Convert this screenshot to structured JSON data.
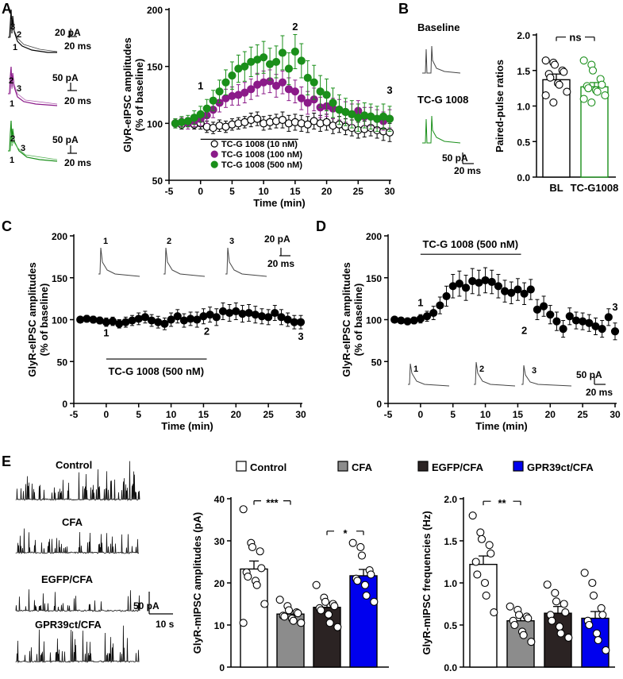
{
  "panels": [
    "A",
    "B",
    "C",
    "D",
    "E"
  ],
  "colors": {
    "black": "#000000",
    "purple": "#8b1a89",
    "green": "#1a8f1a",
    "gray": "#8c8c8c",
    "dark": "#2b2323",
    "blue": "#0000ee"
  },
  "scalebars": {
    "a1": {
      "y": "20 pA",
      "x": "20 ms"
    },
    "a2": {
      "y": "50 pA",
      "x": "20 ms"
    },
    "a3": {
      "y": "50 pA",
      "x": "20 ms"
    },
    "b": {
      "y": "50 pA",
      "x": "20 ms"
    },
    "c": {
      "y": "20 pA",
      "x": "20 ms"
    },
    "d": {
      "y": "50 pA",
      "x": "20 ms"
    },
    "e": {
      "y": "50 pA",
      "x": "10 s"
    }
  },
  "trace_labels": {
    "one": "1",
    "two": "2",
    "three": "3"
  },
  "b_labels": {
    "baseline": "Baseline",
    "drug": "TC-G 1008"
  },
  "e_traces": {
    "control": "Control",
    "cfa": "CFA",
    "egfp": "EGFP/CFA",
    "gpr": "GPR39ct/CFA"
  },
  "chart_data": [
    {
      "id": "A",
      "type": "scatter",
      "title": "",
      "xlabel": "Time (min)",
      "ylabel": "GlyR-eIPSC amplitudes (% of baseline)",
      "xlim": [
        -5,
        30
      ],
      "ylim": [
        50,
        200
      ],
      "xticks": [
        -5,
        0,
        5,
        10,
        15,
        20,
        25,
        30
      ],
      "yticks": [
        50,
        100,
        150,
        200
      ],
      "markers": [
        "1",
        "2",
        "3"
      ],
      "legend": [
        "TC-G 1008 (10 nM)",
        "TC-G 1008 (100 nM)",
        "TC-G 1008 (500 nM)"
      ],
      "series": [
        {
          "name": "TC-G 1008 (10 nM)",
          "color": "#000000",
          "filled": false,
          "x": [
            -4,
            -3,
            -2,
            -1,
            0,
            1,
            2,
            3,
            4,
            5,
            6,
            7,
            8,
            9,
            10,
            11,
            12,
            13,
            14,
            15,
            16,
            17,
            18,
            19,
            20,
            21,
            22,
            23,
            24,
            25,
            26,
            27,
            28,
            29,
            30
          ],
          "values": [
            100,
            99,
            101,
            99,
            100,
            97,
            96,
            98,
            97,
            99,
            100,
            101,
            103,
            104,
            100,
            101,
            102,
            103,
            100,
            101,
            100,
            99,
            102,
            100,
            101,
            98,
            99,
            97,
            96,
            94,
            95,
            96,
            94,
            93,
            92
          ],
          "err": [
            4,
            4,
            4,
            4,
            5,
            5,
            5,
            5,
            5,
            5,
            5,
            5,
            6,
            6,
            6,
            6,
            6,
            7,
            7,
            7,
            7,
            7,
            7,
            7,
            7,
            7,
            7,
            7,
            7,
            7,
            7,
            7,
            7,
            8,
            8
          ]
        },
        {
          "name": "TC-G 1008 (100 nM)",
          "color": "#8b1a89",
          "filled": true,
          "x": [
            -4,
            -3,
            -2,
            -1,
            0,
            1,
            2,
            3,
            4,
            5,
            6,
            7,
            8,
            9,
            10,
            11,
            12,
            13,
            14,
            15,
            16,
            17,
            18,
            19,
            20,
            21,
            22,
            23,
            24,
            25,
            26,
            27,
            28,
            29,
            30
          ],
          "values": [
            100,
            101,
            100,
            102,
            104,
            107,
            112,
            118,
            122,
            124,
            125,
            127,
            130,
            134,
            136,
            137,
            133,
            136,
            130,
            128,
            122,
            118,
            121,
            114,
            115,
            113,
            112,
            110,
            108,
            111,
            106,
            106,
            104,
            102,
            104
          ],
          "err": [
            4,
            4,
            5,
            5,
            6,
            7,
            7,
            8,
            8,
            8,
            9,
            9,
            9,
            10,
            10,
            10,
            10,
            10,
            10,
            10,
            10,
            10,
            10,
            9,
            9,
            9,
            9,
            9,
            9,
            9,
            8,
            8,
            8,
            8,
            8
          ]
        },
        {
          "name": "TC-G 1008 (500 nM)",
          "color": "#1a8f1a",
          "filled": true,
          "x": [
            -4,
            -3,
            -2,
            -1,
            0,
            1,
            2,
            3,
            4,
            5,
            6,
            7,
            8,
            9,
            10,
            11,
            12,
            13,
            14,
            15,
            16,
            17,
            18,
            19,
            20,
            21,
            22,
            23,
            24,
            25,
            26,
            27,
            28,
            29,
            30
          ],
          "values": [
            100,
            101,
            102,
            105,
            108,
            113,
            120,
            128,
            136,
            142,
            148,
            150,
            154,
            156,
            158,
            152,
            154,
            162,
            148,
            163,
            155,
            140,
            136,
            128,
            125,
            118,
            112,
            110,
            108,
            105,
            107,
            106,
            104,
            106,
            104
          ],
          "err": [
            4,
            5,
            5,
            6,
            7,
            8,
            9,
            10,
            11,
            12,
            12,
            13,
            13,
            13,
            14,
            14,
            14,
            15,
            14,
            15,
            15,
            15,
            15,
            14,
            14,
            13,
            13,
            12,
            12,
            12,
            11,
            11,
            11,
            11,
            11
          ]
        }
      ]
    },
    {
      "id": "B",
      "type": "bar",
      "title": "",
      "xlabel": "",
      "ylabel": "Paired-pulse ratios",
      "categories": [
        "BL",
        "TC-G1008"
      ],
      "values": [
        1.37,
        1.27
      ],
      "err": [
        0.08,
        0.06
      ],
      "colors": [
        "#000000",
        "#1a8f1a"
      ],
      "ylim": [
        0,
        2.0
      ],
      "yticks": [
        0,
        0.5,
        1.0,
        1.5,
        2.0
      ],
      "points": [
        [
          1.64,
          1.61,
          1.58,
          1.5,
          1.48,
          1.45,
          1.4,
          1.32,
          1.3,
          1.2,
          1.15,
          1.05
        ],
        [
          1.64,
          1.58,
          1.5,
          1.38,
          1.3,
          1.28,
          1.25,
          1.22,
          1.2,
          1.15,
          1.1,
          1.05
        ]
      ],
      "significance": "ns"
    },
    {
      "id": "C",
      "type": "scatter",
      "title": "",
      "xlabel": "Time (min)",
      "ylabel": "GlyR-eIPSC amplitudes (% of baseline)",
      "xlim": [
        -5,
        30
      ],
      "ylim": [
        0,
        200
      ],
      "xticks": [
        -5,
        0,
        5,
        10,
        15,
        20,
        25,
        30
      ],
      "yticks": [
        0,
        50,
        100,
        150,
        200
      ],
      "drug_label": "TC-G 1008 (500 nM)",
      "drug_start": 0,
      "drug_end": 15.5,
      "markers": [
        "1",
        "2",
        "3"
      ],
      "series": [
        {
          "name": "TC-G 1008 (500 nM)",
          "color": "#000000",
          "filled": true,
          "x": [
            -4,
            -3,
            -2,
            -1,
            0,
            1,
            2,
            3,
            4,
            5,
            6,
            7,
            8,
            9,
            10,
            11,
            12,
            13,
            14,
            15,
            16,
            17,
            18,
            19,
            20,
            21,
            22,
            23,
            24,
            25,
            26,
            27,
            28,
            29,
            30
          ],
          "values": [
            100,
            101,
            100,
            99,
            97,
            98,
            95,
            97,
            99,
            101,
            103,
            99,
            97,
            95,
            100,
            104,
            99,
            101,
            100,
            104,
            106,
            103,
            110,
            108,
            110,
            107,
            108,
            106,
            104,
            103,
            108,
            103,
            100,
            97,
            97
          ],
          "err": [
            3,
            4,
            4,
            4,
            5,
            5,
            5,
            6,
            6,
            7,
            7,
            7,
            7,
            7,
            8,
            8,
            8,
            8,
            9,
            9,
            9,
            10,
            10,
            10,
            10,
            10,
            10,
            10,
            9,
            9,
            9,
            9,
            8,
            8,
            8
          ]
        }
      ]
    },
    {
      "id": "D",
      "type": "scatter",
      "title": "",
      "xlabel": "Time (min)",
      "ylabel": "GlyR-eIPSC amplitudes (% of baseline)",
      "xlim": [
        -5,
        30
      ],
      "ylim": [
        0,
        200
      ],
      "xticks": [
        -5,
        0,
        5,
        10,
        15,
        20,
        25,
        30
      ],
      "yticks": [
        0,
        50,
        100,
        150,
        200
      ],
      "drug_label": "TC-G 1008 (500 nM)",
      "drug_start": 0,
      "drug_end": 15.5,
      "markers": [
        "1",
        "2",
        "3"
      ],
      "series": [
        {
          "name": "TC-G 1008 (500 nM)",
          "color": "#000000",
          "filled": true,
          "x": [
            -4,
            -3,
            -2,
            -1,
            0,
            1,
            2,
            3,
            4,
            5,
            6,
            7,
            8,
            9,
            10,
            11,
            12,
            13,
            14,
            15,
            16,
            17,
            18,
            19,
            20,
            21,
            22,
            23,
            24,
            25,
            26,
            27,
            28,
            29,
            30
          ],
          "values": [
            100,
            99,
            98,
            99,
            101,
            104,
            108,
            117,
            128,
            140,
            143,
            138,
            146,
            144,
            147,
            145,
            140,
            134,
            132,
            136,
            131,
            136,
            112,
            116,
            106,
            98,
            89,
            104,
            99,
            98,
            96,
            92,
            89,
            103,
            86
          ],
          "err": [
            3,
            3,
            4,
            4,
            5,
            6,
            8,
            10,
            12,
            14,
            15,
            15,
            15,
            15,
            15,
            14,
            14,
            13,
            13,
            13,
            13,
            12,
            12,
            12,
            11,
            11,
            10,
            10,
            10,
            10,
            10,
            10,
            10,
            10,
            10
          ]
        }
      ]
    },
    {
      "id": "E1",
      "type": "bar",
      "title": "",
      "xlabel": "",
      "ylabel": "GlyR-mIPSC amplitudes (pA)",
      "categories": [
        "Control",
        "CFA",
        "EGFP/CFA",
        "GPR39ct/CFA"
      ],
      "values": [
        23.3,
        12.6,
        14.2,
        21.7
      ],
      "err": [
        1.9,
        0.8,
        1.1,
        1.5
      ],
      "colors": [
        "#ffffff",
        "#8c8c8c",
        "#2b2323",
        "#0000ee"
      ],
      "ylim": [
        0,
        40
      ],
      "yticks": [
        0,
        10,
        20,
        30,
        40
      ],
      "points": [
        [
          37.5,
          29.5,
          28.5,
          27.5,
          23.5,
          22.5,
          21.5,
          20.5,
          19.5,
          15.0,
          10.5
        ],
        [
          16.0,
          14.5,
          13.5,
          13.0,
          12.8,
          12.2,
          12.0,
          11.5,
          11.0,
          10.5
        ],
        [
          19.5,
          16.5,
          15.5,
          15.0,
          14.5,
          14.0,
          13.5,
          12.5,
          10.5,
          9.5
        ],
        [
          29.5,
          28.5,
          26.5,
          23.0,
          22.0,
          21.0,
          20.5,
          19.5,
          17.0,
          15.5
        ]
      ],
      "significance": [
        {
          "from": 0,
          "to": 1,
          "label": "***"
        },
        {
          "from": 2,
          "to": 3,
          "label": "*"
        }
      ]
    },
    {
      "id": "E2",
      "type": "bar",
      "title": "",
      "xlabel": "",
      "ylabel": "GlyR-mIPSC frequencies (Hz)",
      "categories": [
        "Control",
        "CFA",
        "EGFP/CFA",
        "GPR39ct/CFA"
      ],
      "values": [
        1.22,
        0.55,
        0.64,
        0.58
      ],
      "err": [
        0.1,
        0.05,
        0.08,
        0.08
      ],
      "colors": [
        "#ffffff",
        "#8c8c8c",
        "#2b2323",
        "#0000ee"
      ],
      "ylim": [
        0,
        2.0
      ],
      "yticks": [
        0,
        0.5,
        1.0,
        1.5,
        2.0
      ],
      "points": [
        [
          1.8,
          1.6,
          1.52,
          1.45,
          1.35,
          1.25,
          1.1,
          1.0,
          0.85,
          0.65
        ],
        [
          0.72,
          0.68,
          0.62,
          0.6,
          0.58,
          0.55,
          0.5,
          0.42,
          0.38,
          0.3
        ],
        [
          0.98,
          0.88,
          0.78,
          0.75,
          0.65,
          0.62,
          0.55,
          0.48,
          0.4,
          0.35
        ],
        [
          1.12,
          1.0,
          0.85,
          0.7,
          0.62,
          0.55,
          0.5,
          0.4,
          0.32,
          0.2
        ]
      ],
      "significance": [
        {
          "from": 0,
          "to": 1,
          "label": "**"
        }
      ],
      "legend": [
        "Control",
        "CFA",
        "EGFP/CFA",
        "GPR39ct/CFA"
      ]
    }
  ]
}
